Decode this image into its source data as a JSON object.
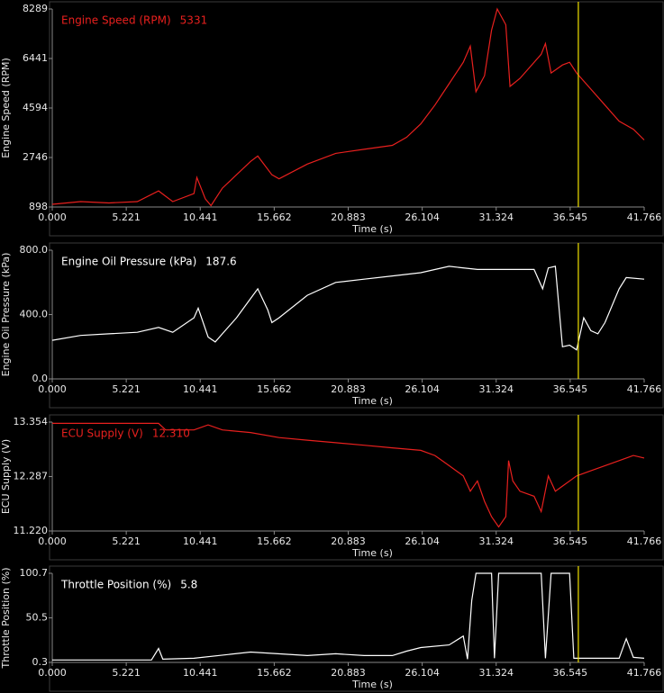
{
  "chart_data": [
    {
      "type": "line",
      "y_label": "Engine Speed (RPM)",
      "x_label": "Time (s)",
      "readout": 5331,
      "cursor": 37.12,
      "series": [
        {
          "name": "Engine Speed (RPM)",
          "color": "#e8201e",
          "values": [
            1000,
            1100,
            1050,
            1100,
            1500,
            1100,
            1400,
            2000,
            1200,
            950,
            1600,
            2100,
            2600,
            2800,
            2100,
            1950,
            2500,
            2900,
            3050,
            3200,
            3500,
            4000,
            4700,
            5500,
            6300,
            6900,
            5200,
            5800,
            7500,
            8289,
            7700,
            5400,
            5700,
            6600,
            7000,
            5900,
            6200,
            6300,
            5900,
            5300,
            4700,
            4100,
            3800,
            3400
          ]
        }
      ],
      "x": [
        0,
        2,
        4,
        6,
        7.5,
        8.5,
        10,
        10.2,
        10.8,
        11.2,
        12,
        13,
        14,
        14.5,
        15.5,
        16,
        18,
        20,
        22,
        24,
        25,
        26,
        27,
        28,
        29,
        29.5,
        29.9,
        30.5,
        31,
        31.4,
        32,
        32.3,
        33,
        34.5,
        34.8,
        35.2,
        36,
        36.5,
        37,
        38,
        39,
        40,
        41,
        41.766
      ],
      "xlim": [
        0,
        41.766
      ],
      "xticks": [
        {
          "value": 0,
          "label": "0.000"
        },
        5.221,
        10.441,
        15.662,
        20.883,
        26.104,
        31.324,
        36.545,
        41.766
      ],
      "ylim": [
        898,
        8289
      ],
      "yticks": [
        898,
        2746,
        4594,
        6441,
        8289
      ]
    },
    {
      "type": "line",
      "y_label": "Engine Oil Pressure (kPa)",
      "x_label": "Time (s)",
      "readout": 187.6,
      "cursor": 37.12,
      "series": [
        {
          "name": "Engine Oil Pressure (kPa)",
          "color": "#ffffff",
          "values": [
            240,
            270,
            280,
            290,
            320,
            290,
            380,
            440,
            260,
            230,
            280,
            380,
            500,
            560,
            430,
            350,
            380,
            520,
            600,
            620,
            640,
            660,
            700,
            680,
            680,
            680,
            560,
            690,
            700,
            200,
            210,
            180,
            380,
            300,
            280,
            350,
            560,
            630,
            620
          ]
        }
      ],
      "x": [
        0,
        2,
        4,
        6,
        7.5,
        8.5,
        10,
        10.3,
        11,
        11.5,
        12,
        13,
        14,
        14.5,
        15.2,
        15.5,
        16,
        18,
        20,
        22,
        24,
        26,
        28,
        30,
        32,
        34,
        34.6,
        35,
        35.5,
        36,
        36.5,
        37,
        37.5,
        38,
        38.5,
        39,
        40,
        40.5,
        41.766
      ],
      "xlim": [
        0,
        41.766
      ],
      "xticks": [
        {
          "value": 0,
          "label": "0.000"
        },
        5.221,
        10.441,
        15.662,
        20.883,
        26.104,
        31.324,
        36.545,
        41.766
      ],
      "ylim": [
        0,
        800
      ],
      "yticks": [
        {
          "value": 0,
          "label": "0.0"
        },
        {
          "value": 400,
          "label": "400.0"
        },
        {
          "value": 800,
          "label": "800.0"
        }
      ]
    },
    {
      "type": "line",
      "y_label": "ECU Supply (V)",
      "x_label": "Time (s)",
      "readout": {
        "value": 12.31,
        "label": "12.310"
      },
      "cursor": 37.12,
      "series": [
        {
          "name": "ECU Supply (V)",
          "color": "#e8201e",
          "values": [
            13.33,
            13.33,
            13.33,
            13.2,
            13.2,
            13.3,
            13.2,
            13.15,
            13.05,
            13.0,
            12.95,
            12.9,
            12.85,
            12.8,
            12.7,
            12.5,
            12.3,
            12.0,
            12.2,
            11.8,
            11.5,
            11.3,
            11.5,
            12.6,
            12.2,
            12.0,
            11.9,
            11.6,
            12.3,
            12.0,
            12.1,
            12.3,
            12.4,
            12.5,
            12.6,
            12.7,
            12.65
          ]
        }
      ],
      "x": [
        0,
        3,
        7.5,
        8,
        10,
        11,
        12,
        14,
        16,
        18,
        20,
        22,
        24,
        26,
        27,
        28,
        29,
        29.5,
        30,
        30.5,
        31,
        31.5,
        32,
        32.2,
        32.5,
        33,
        34,
        34.5,
        35,
        35.5,
        36,
        37,
        38,
        39,
        40,
        41,
        41.766
      ],
      "xlim": [
        0,
        41.766
      ],
      "xticks": [
        {
          "value": 0,
          "label": "0.000"
        },
        5.221,
        10.441,
        15.662,
        20.883,
        26.104,
        31.324,
        36.545,
        41.766
      ],
      "ylim": [
        11.22,
        13.354
      ],
      "yticks": [
        {
          "value": 11.22,
          "label": "11.220"
        },
        12.287,
        13.354
      ]
    },
    {
      "type": "line",
      "y_label": "Throttle Position (%)",
      "x_label": "Time (s)",
      "readout": 5.8,
      "cursor": 37.12,
      "series": [
        {
          "name": "Throttle Position (%)",
          "color": "#ffffff",
          "values": [
            3,
            3,
            16,
            4,
            5,
            12,
            8,
            10,
            8,
            8,
            13,
            17,
            20,
            30,
            4,
            70,
            100.7,
            100.7,
            5,
            100.7,
            100.7,
            5,
            100.7,
            100.7,
            5,
            5,
            27,
            6,
            5
          ]
        }
      ],
      "x": [
        0,
        7,
        7.5,
        7.8,
        10,
        14,
        18,
        20,
        22,
        24,
        25,
        26,
        28,
        29,
        29.3,
        29.6,
        29.9,
        31,
        31.2,
        31.5,
        34.5,
        34.8,
        35.2,
        36.5,
        36.8,
        40,
        40.5,
        41,
        41.766
      ],
      "xlim": [
        0,
        41.766
      ],
      "xticks": [
        {
          "value": 0,
          "label": "0.000"
        },
        5.221,
        10.441,
        15.662,
        20.883,
        26.104,
        31.324,
        36.545,
        41.766
      ],
      "ylim": [
        0.3,
        100.7
      ],
      "yticks": [
        0.3,
        50.5,
        100.7
      ]
    }
  ]
}
